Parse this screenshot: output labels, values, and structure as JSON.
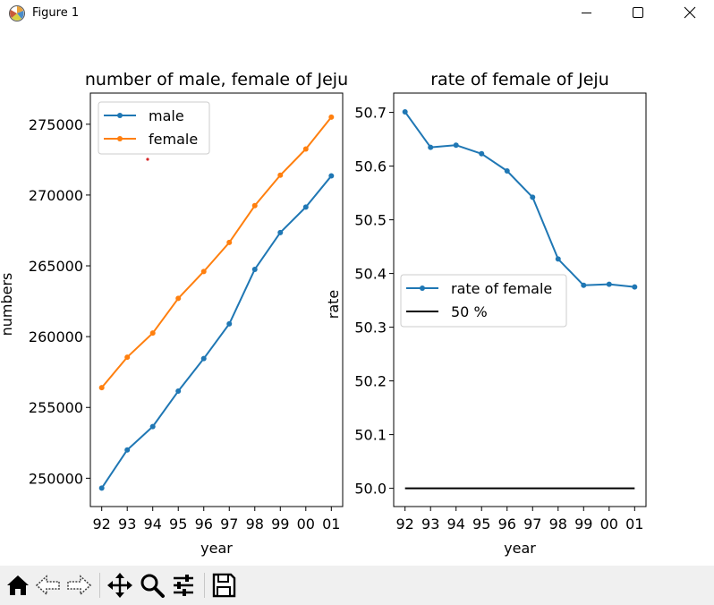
{
  "window": {
    "title": "Figure 1"
  },
  "toolbar": {
    "buttons": [
      {
        "name": "home-icon"
      },
      {
        "name": "back-icon"
      },
      {
        "name": "forward-icon"
      },
      {
        "name": "pan-icon"
      },
      {
        "name": "zoom-icon"
      },
      {
        "name": "configure-subplots-icon"
      },
      {
        "name": "save-icon"
      }
    ]
  },
  "chart_data": [
    {
      "type": "line",
      "title": "number of male, female of Jeju",
      "xlabel": "year",
      "ylabel": "numbers",
      "categories": [
        "92",
        "93",
        "94",
        "95",
        "96",
        "97",
        "98",
        "99",
        "00",
        "01"
      ],
      "ylim": [
        248000,
        277200
      ],
      "yticks": [
        250000,
        255000,
        260000,
        265000,
        270000,
        275000
      ],
      "series": [
        {
          "name": "male",
          "color": "#1f77b4",
          "marker": "dot",
          "values": [
            249300,
            252000,
            253650,
            256150,
            258450,
            260900,
            264750,
            267350,
            269150,
            271350
          ]
        },
        {
          "name": "female",
          "color": "#ff7f0e",
          "marker": "dot",
          "values": [
            256400,
            258550,
            260250,
            262700,
            264600,
            266650,
            269250,
            271400,
            273250,
            275500
          ]
        }
      ],
      "legend": "upper-left",
      "grid": false
    },
    {
      "type": "line",
      "title": "rate of female of Jeju",
      "xlabel": "year",
      "ylabel": "rate",
      "categories": [
        "92",
        "93",
        "94",
        "95",
        "96",
        "97",
        "98",
        "99",
        "00",
        "01"
      ],
      "ylim": [
        49.966,
        50.736
      ],
      "yticks": [
        50.0,
        50.1,
        50.2,
        50.3,
        50.4,
        50.5,
        50.6,
        50.7
      ],
      "series": [
        {
          "name": "rate of female",
          "color": "#1f77b4",
          "marker": "dot",
          "values": [
            50.701,
            50.635,
            50.639,
            50.623,
            50.591,
            50.542,
            50.427,
            50.378,
            50.38,
            50.375
          ]
        },
        {
          "name": "50 %",
          "color": "#000000",
          "marker": "none",
          "values": [
            50.0,
            50.0,
            50.0,
            50.0,
            50.0,
            50.0,
            50.0,
            50.0,
            50.0,
            50.0
          ]
        }
      ],
      "legend": "center-left",
      "grid": false
    }
  ]
}
